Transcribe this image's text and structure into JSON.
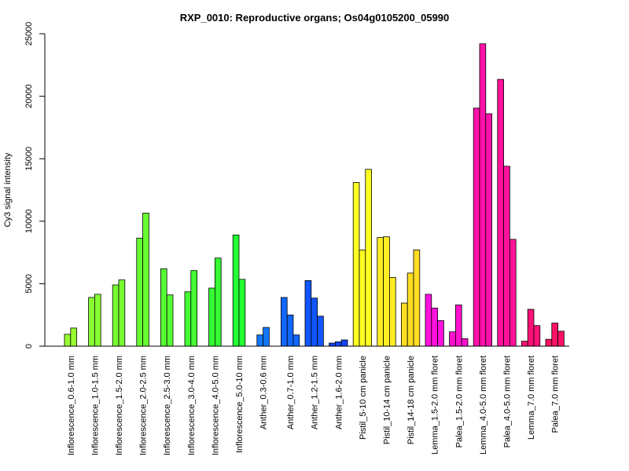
{
  "chart_data": {
    "type": "bar",
    "title": "RXP_0010: Reproductive organs; Os04g0105200_05990",
    "ylabel": "Cy3 signal intensity",
    "xlabel": "",
    "ylim": [
      0,
      25000
    ],
    "yticks": [
      0,
      5000,
      10000,
      15000,
      20000,
      25000
    ],
    "grid": false,
    "legend": "none",
    "groups": [
      {
        "label": "Inflorescence_0.6-1.0 mm",
        "values": [
          950,
          1450
        ],
        "colors": [
          "#99ff33",
          "#99ff33"
        ]
      },
      {
        "label": "Inflorescence_1.0-1.5 mm",
        "values": [
          3900,
          4150
        ],
        "colors": [
          "#88ff33",
          "#88ff33"
        ]
      },
      {
        "label": "Inflorescence_1.5-2.0 mm",
        "values": [
          4900,
          5300
        ],
        "colors": [
          "#77ff33",
          "#77ff33"
        ]
      },
      {
        "label": "Inflorescence_2.0-2.5 mm",
        "values": [
          8650,
          10650
        ],
        "colors": [
          "#66ff33",
          "#66ff33"
        ]
      },
      {
        "label": "Inflorescence_2.5-3.0 mm",
        "values": [
          6200,
          4100
        ],
        "colors": [
          "#55ff33",
          "#55ff33"
        ]
      },
      {
        "label": "Inflorescence_3.0-4.0 mm",
        "values": [
          4350,
          6050
        ],
        "colors": [
          "#44ff33",
          "#44ff33"
        ]
      },
      {
        "label": "Inflorescence_4.0-5.0 mm",
        "values": [
          4650,
          7050
        ],
        "colors": [
          "#33ff33",
          "#33ff33"
        ]
      },
      {
        "label": "Inflorescence_5.0-10 mm",
        "values": [
          8900,
          5350
        ],
        "colors": [
          "#22ff33",
          "#22ff33"
        ]
      },
      {
        "label": "Anther_0.3-0.6 mm",
        "values": [
          900,
          1500
        ],
        "colors": [
          "#1177ff",
          "#1177ff"
        ]
      },
      {
        "label": "Anther_0.7-1.0 mm",
        "values": [
          3900,
          2500,
          900
        ],
        "colors": [
          "#1166ff",
          "#1166ff",
          "#1166ff"
        ]
      },
      {
        "label": "Anther_1.2-1.5 mm",
        "values": [
          5250,
          3850,
          2400
        ],
        "colors": [
          "#1155ff",
          "#1155ff",
          "#1155ff"
        ]
      },
      {
        "label": "Anther_1.6-2.0 mm",
        "values": [
          250,
          350,
          500
        ],
        "colors": [
          "#1144ff",
          "#1144ff",
          "#1144ff"
        ]
      },
      {
        "label": "Pistil_5-10 cm panicle",
        "values": [
          13100,
          7700,
          14150
        ],
        "colors": [
          "#ffff22",
          "#ffff22",
          "#ffff22"
        ]
      },
      {
        "label": "Pistil_10-14 cm panicle",
        "values": [
          8700,
          8750,
          5500
        ],
        "colors": [
          "#ffee22",
          "#ffee22",
          "#ffee22"
        ]
      },
      {
        "label": "Pistil_14-18 cm panicle",
        "values": [
          3450,
          5850,
          7700
        ],
        "colors": [
          "#ffdd22",
          "#ffdd22",
          "#ffdd22"
        ]
      },
      {
        "label": "Lemma_1.5-2.0 mm floret",
        "values": [
          4150,
          3050,
          2050
        ],
        "colors": [
          "#ff11dd",
          "#ff11dd",
          "#ff11dd"
        ]
      },
      {
        "label": "Palea_1.5-2.0 mm floret",
        "values": [
          1150,
          3300,
          600
        ],
        "colors": [
          "#ff11cc",
          "#ff11cc",
          "#ff11cc"
        ]
      },
      {
        "label": "Lemma_4.0-5.0 mm floret",
        "values": [
          19050,
          24200,
          18600
        ],
        "colors": [
          "#ff11aa",
          "#ff11aa",
          "#ff11aa"
        ]
      },
      {
        "label": "Palea_4.0-5.0 mm floret",
        "values": [
          21350,
          14400,
          8550
        ],
        "colors": [
          "#ff1199",
          "#ff1199",
          "#ff1199"
        ]
      },
      {
        "label": "Lemma_7.0 mm floret",
        "values": [
          400,
          2950,
          1650
        ],
        "colors": [
          "#ff1177",
          "#ff1177",
          "#ff1177"
        ]
      },
      {
        "label": "Palea_7.0 mm floret",
        "values": [
          550,
          1850,
          1200
        ],
        "colors": [
          "#ff1166",
          "#ff1166",
          "#ff1166"
        ]
      }
    ]
  }
}
